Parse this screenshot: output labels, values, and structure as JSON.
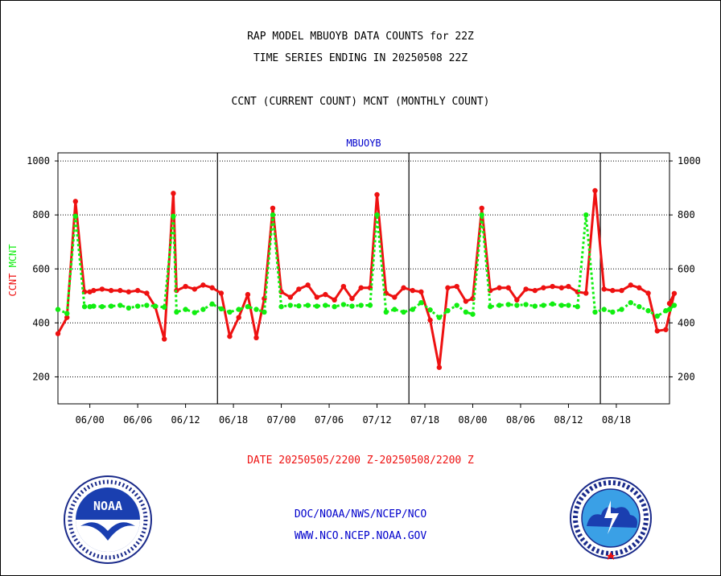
{
  "header": {
    "title_line1": "RAP MODEL MBUOYB DATA COUNTS for 22Z",
    "title_line2": "TIME SERIES ENDING IN 20250508 22Z",
    "title_line3": "CCNT (CURRENT COUNT) MCNT (MONTHLY COUNT)"
  },
  "footer": {
    "date_range": "DATE 20250505/2200 Z-20250508/2200 Z",
    "org_path": "DOC/NOAA/NWS/NCEP/NCO",
    "website": "WWW.NCO.NCEP.NOAA.GOV",
    "left_logo": {
      "label": "NOAA"
    },
    "right_logo": {
      "label": "NATIONAL WEATHER SERVICE"
    }
  },
  "chart_data": {
    "type": "line",
    "title": "MBUOYB",
    "ylabel_ccnt": "CCNT",
    "ylabel_mcnt": "MCNT",
    "ylim": [
      100,
      1030
    ],
    "yticks": [
      200,
      400,
      600,
      800,
      1000
    ],
    "xlim": [
      -3,
      112
    ],
    "x_tick_positions": [
      3,
      12,
      21,
      30,
      39,
      48,
      57,
      66,
      75,
      84,
      93,
      102
    ],
    "x_tick_labels": [
      "06/00",
      "06/06",
      "06/12",
      "06/18",
      "07/00",
      "07/06",
      "07/12",
      "07/18",
      "08/00",
      "08/06",
      "08/12",
      "08/18"
    ],
    "day_dividers": [
      27,
      63,
      99
    ],
    "grid": true,
    "colors": {
      "ccnt": "#ee1111",
      "mcnt": "#11ee11",
      "title": "#0000cc",
      "text": "#000000"
    },
    "series": [
      {
        "name": "CCNT",
        "x": [
          -3,
          -1.3,
          0.3,
          2,
          3,
          3.7,
          5.3,
          7,
          8.7,
          10.3,
          12,
          13.7,
          15.3,
          17,
          18.7,
          19.3,
          21,
          22.7,
          24.3,
          26,
          27.7,
          29.3,
          31,
          32.7,
          34.3,
          35.8,
          37.4,
          39,
          40.7,
          42.3,
          44,
          45.7,
          47.3,
          49,
          50.7,
          52.3,
          54,
          55.7,
          57,
          58.7,
          60.3,
          62,
          63.7,
          65.3,
          67,
          68.7,
          70.3,
          72,
          73.7,
          75,
          76.7,
          78.3,
          80,
          81.7,
          83.3,
          85,
          86.7,
          88.3,
          90,
          91.7,
          93,
          94.7,
          96.3,
          98,
          99.7,
          101.3,
          103,
          104.7,
          106.3,
          108,
          109.7,
          111.3
        ],
        "values": [
          360,
          420,
          850,
          515,
          515,
          520,
          525,
          520,
          520,
          515,
          520,
          510,
          460,
          340,
          880,
          520,
          535,
          525,
          540,
          530,
          510,
          350,
          420,
          505,
          345,
          490,
          825,
          515,
          495,
          525,
          540,
          495,
          505,
          485,
          535,
          490,
          530,
          530,
          875,
          510,
          495,
          530,
          520,
          515,
          410,
          235,
          530,
          535,
          480,
          490,
          825,
          520,
          530,
          530,
          485,
          525,
          520,
          530,
          535,
          530,
          535,
          515,
          510,
          890,
          525,
          520,
          520,
          540,
          530,
          510,
          370,
          375
        ],
        "endpoint_note": [
          509,
          472
        ]
      },
      {
        "name": "MCNT",
        "x": [
          -3,
          -1.3,
          0.3,
          2,
          3,
          3.7,
          5.3,
          7,
          8.7,
          10.3,
          12,
          13.7,
          15.3,
          17,
          18.7,
          19.3,
          21,
          22.7,
          24.3,
          26,
          27.7,
          29.3,
          31,
          32.7,
          34.3,
          35.8,
          37.4,
          39,
          40.7,
          42.3,
          44,
          45.7,
          47.3,
          49,
          50.7,
          52.3,
          54,
          55.7,
          57,
          58.7,
          60.3,
          62,
          63.7,
          65.3,
          67,
          68.7,
          70.3,
          72,
          73.7,
          75,
          76.7,
          78.3,
          80,
          81.7,
          83.3,
          85,
          86.7,
          88.3,
          90,
          91.7,
          93,
          94.7,
          96.3,
          98,
          99.7,
          101.3,
          103,
          104.7,
          106.3,
          108,
          109.7,
          111.3
        ],
        "values": [
          450,
          435,
          795,
          460,
          460,
          462,
          460,
          462,
          465,
          455,
          462,
          465,
          462,
          458,
          795,
          440,
          450,
          438,
          450,
          470,
          452,
          440,
          450,
          460,
          450,
          440,
          800,
          460,
          465,
          463,
          465,
          462,
          465,
          460,
          468,
          462,
          465,
          465,
          800,
          440,
          450,
          440,
          450,
          475,
          448,
          420,
          445,
          465,
          440,
          432,
          800,
          460,
          465,
          468,
          465,
          468,
          462,
          465,
          470,
          465,
          465,
          460,
          800,
          440,
          450,
          440,
          450,
          475,
          460,
          445,
          425,
          445
        ],
        "endpoint_note": [
          465,
          450
        ]
      }
    ]
  }
}
